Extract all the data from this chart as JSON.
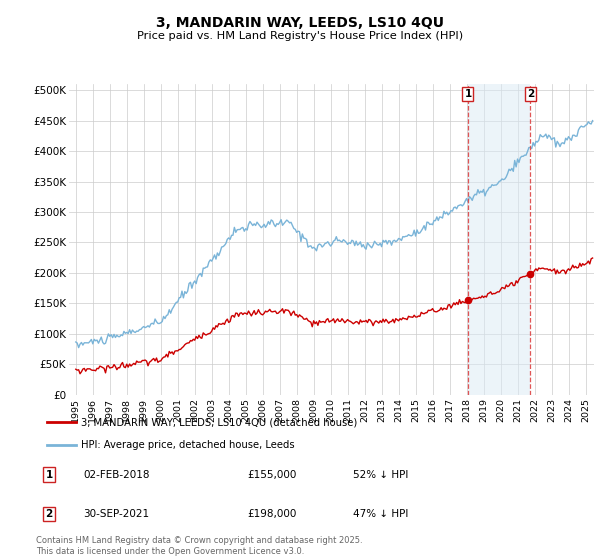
{
  "title": "3, MANDARIN WAY, LEEDS, LS10 4QU",
  "subtitle": "Price paid vs. HM Land Registry's House Price Index (HPI)",
  "hpi_color": "#7ab4d8",
  "price_color": "#cc0000",
  "vline_color": "#dd4444",
  "background_color": "#ffffff",
  "grid_color": "#cccccc",
  "shade_color": "#daeaf5",
  "shade_alpha": 0.5,
  "sale1_year": 2018.083,
  "sale1_price": 155000,
  "sale2_year": 2021.75,
  "sale2_price": 198000,
  "legend_line1": "3, MANDARIN WAY, LEEDS, LS10 4QU (detached house)",
  "legend_line2": "HPI: Average price, detached house, Leeds",
  "footer": "Contains HM Land Registry data © Crown copyright and database right 2025.\nThis data is licensed under the Open Government Licence v3.0.",
  "ylim": [
    0,
    510000
  ],
  "yticks": [
    0,
    50000,
    100000,
    150000,
    200000,
    250000,
    300000,
    350000,
    400000,
    450000,
    500000
  ],
  "ytick_labels": [
    "£0",
    "£50K",
    "£100K",
    "£150K",
    "£200K",
    "£250K",
    "£300K",
    "£350K",
    "£400K",
    "£450K",
    "£500K"
  ],
  "xlim_start": 1994.6,
  "xlim_end": 2025.5,
  "hpi_seed": 10,
  "price_seed": 20
}
